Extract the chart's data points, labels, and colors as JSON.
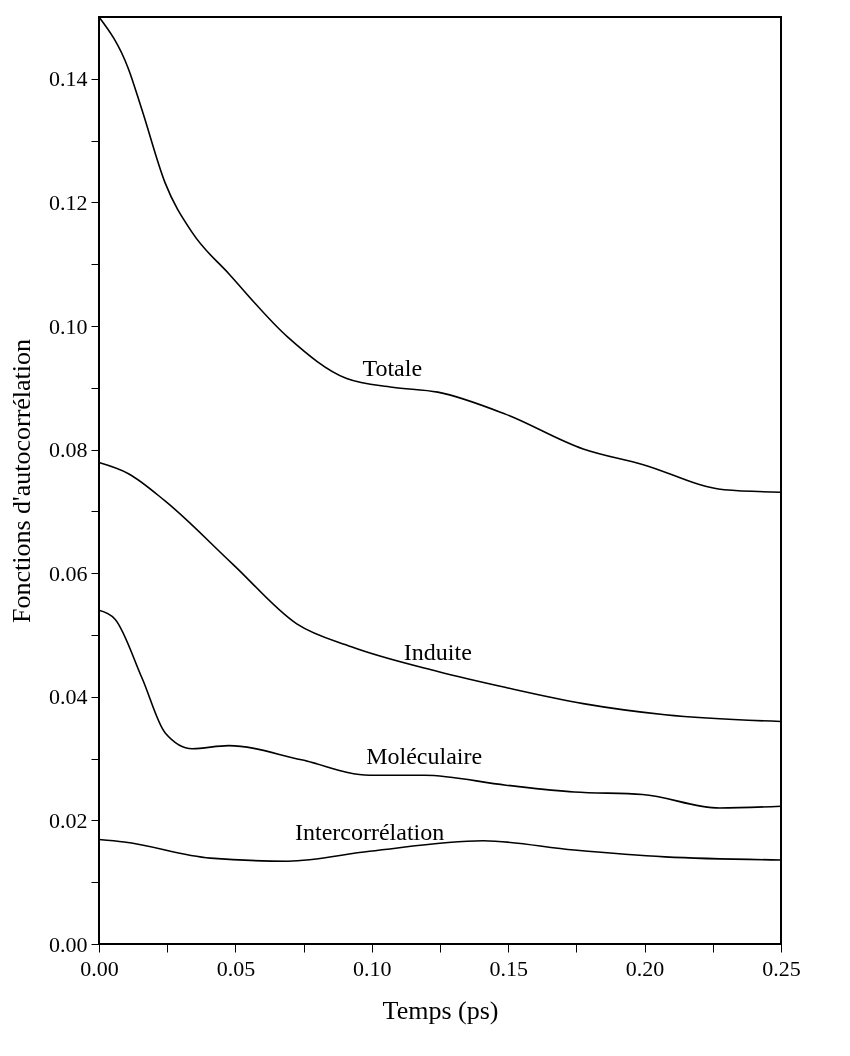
{
  "chart_data": {
    "type": "line",
    "xlabel": "Temps (ps)",
    "ylabel": "Fonctions d'autocorrélation",
    "xlim": [
      0,
      0.25
    ],
    "ylim": [
      0,
      0.15
    ],
    "xticks": [
      {
        "value": 0,
        "label": "0.00"
      },
      {
        "value": 0.025,
        "label": null
      },
      0.05,
      {
        "value": 0.075,
        "label": null
      },
      {
        "value": 0.1,
        "label": "0.10"
      },
      {
        "value": 0.125,
        "label": null
      },
      0.15,
      {
        "value": 0.175,
        "label": null
      },
      {
        "value": 0.2,
        "label": "0.20"
      },
      {
        "value": 0.225,
        "label": null
      },
      0.25
    ],
    "yticks": [
      {
        "value": 0,
        "label": "0.00"
      },
      {
        "value": 0.01,
        "label": null
      },
      0.02,
      {
        "value": 0.03,
        "label": null
      },
      0.04,
      {
        "value": 0.05,
        "label": null
      },
      0.06,
      {
        "value": 0.07,
        "label": null
      },
      0.08,
      {
        "value": 0.09,
        "label": null
      },
      {
        "value": 0.1,
        "label": "0.10"
      },
      {
        "value": 0.11,
        "label": null
      },
      0.12,
      {
        "value": 0.13,
        "label": null
      },
      0.14
    ],
    "grid": false,
    "marker": "none",
    "line_style": "solid",
    "series": [
      {
        "name": "Totale",
        "color": "#000000",
        "x": [
          0,
          0.0108,
          0.0158,
          0.0242,
          0.0342,
          0.0475,
          0.0692,
          0.0908,
          0.1075,
          0.1242,
          0.1492,
          0.1775,
          0.1992,
          0.2292,
          0.25
        ],
        "values": [
          0.15,
          0.1416,
          0.1349,
          0.1232,
          0.1151,
          0.1085,
          0.0982,
          0.0915,
          0.0901,
          0.0893,
          0.0857,
          0.0801,
          0.0776,
          0.0735,
          0.0731
        ]
      },
      {
        "name": "Induite",
        "color": "#000000",
        "x": [
          0,
          0.0108,
          0.0242,
          0.0492,
          0.0725,
          0.0925,
          0.1242,
          0.1492,
          0.1775,
          0.2075,
          0.25
        ],
        "values": [
          0.0779,
          0.0761,
          0.0717,
          0.0614,
          0.0518,
          0.0481,
          0.0441,
          0.0415,
          0.0389,
          0.0371,
          0.036
        ]
      },
      {
        "name": "Moléculaire",
        "color": "#000000",
        "x": [
          0,
          0.0058,
          0.0158,
          0.0242,
          0.0342,
          0.0475,
          0.0742,
          0.0992,
          0.1192,
          0.1492,
          0.1742,
          0.1992,
          0.2275,
          0.25
        ],
        "values": [
          0.054,
          0.0526,
          0.043,
          0.0342,
          0.0316,
          0.0321,
          0.0298,
          0.0273,
          0.0273,
          0.0257,
          0.0246,
          0.0242,
          0.022,
          0.0223
        ]
      },
      {
        "name": "Intercorrélation",
        "color": "#000000",
        "x": [
          0,
          0.0092,
          0.0408,
          0.0692,
          0.0992,
          0.1408,
          0.1742,
          0.2075,
          0.25
        ],
        "values": [
          0.0169,
          0.0165,
          0.0139,
          0.0134,
          0.015,
          0.0167,
          0.0152,
          0.0141,
          0.0136
        ]
      }
    ]
  }
}
